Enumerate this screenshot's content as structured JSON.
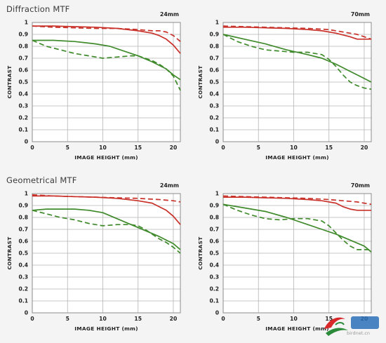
{
  "sections": [
    {
      "title": "Diffraction MTF"
    },
    {
      "title": "Geometrical MTF"
    }
  ],
  "colors": {
    "sagittal_red": "#c9322b",
    "meridional_red": "#c9322b",
    "green": "#3f8a2b",
    "grid": "#b5b5b5",
    "frame": "#8c8c8c",
    "background": "#ffffff"
  },
  "chart_data": [
    {
      "type": "line",
      "section": "Diffraction MTF",
      "focal_length": "24mm",
      "xlabel": "IMAGE HEIGHT (mm)",
      "ylabel": "CONTRAST",
      "xlim": [
        0,
        21
      ],
      "ylim": [
        0,
        1
      ],
      "xticks": [
        "0",
        "5",
        "10",
        "15",
        "20"
      ],
      "yticks": [
        "0",
        "0.1",
        "0.2",
        "0.3",
        "0.4",
        "0.5",
        "0.6",
        "0.7",
        "0.8",
        "0.9",
        "1"
      ],
      "grid": true,
      "series": [
        {
          "color": "red",
          "style": "solid",
          "x": [
            0,
            3,
            6,
            9,
            12,
            15,
            17,
            18,
            19,
            20,
            21
          ],
          "y": [
            0.97,
            0.97,
            0.965,
            0.96,
            0.95,
            0.93,
            0.91,
            0.89,
            0.86,
            0.81,
            0.74
          ]
        },
        {
          "color": "red",
          "style": "dashed",
          "x": [
            0,
            3,
            6,
            9,
            12,
            15,
            17,
            18,
            19,
            20,
            21
          ],
          "y": [
            0.97,
            0.96,
            0.955,
            0.95,
            0.95,
            0.94,
            0.93,
            0.93,
            0.92,
            0.89,
            0.84
          ]
        },
        {
          "color": "green",
          "style": "solid",
          "x": [
            0,
            3,
            6,
            9,
            11,
            13,
            15,
            17,
            19,
            20,
            21
          ],
          "y": [
            0.85,
            0.85,
            0.84,
            0.82,
            0.8,
            0.76,
            0.72,
            0.67,
            0.61,
            0.56,
            0.52
          ]
        },
        {
          "color": "green",
          "style": "dashed",
          "x": [
            0,
            2,
            4,
            6,
            8,
            10,
            12,
            14,
            15,
            16,
            17,
            18,
            19,
            20,
            21
          ],
          "y": [
            0.85,
            0.8,
            0.77,
            0.74,
            0.72,
            0.7,
            0.71,
            0.72,
            0.72,
            0.7,
            0.68,
            0.65,
            0.61,
            0.55,
            0.43
          ]
        }
      ]
    },
    {
      "type": "line",
      "section": "Diffraction MTF",
      "focal_length": "70mm",
      "xlabel": "IMAGE HEIGHT (mm)",
      "ylabel": "CONTRAST",
      "xlim": [
        0,
        21
      ],
      "ylim": [
        0,
        1
      ],
      "xticks": [
        "0",
        "5",
        "10",
        "15",
        "20"
      ],
      "yticks": [
        "0",
        "0.1",
        "0.2",
        "0.3",
        "0.4",
        "0.5",
        "0.6",
        "0.7",
        "0.8",
        "0.9",
        "1"
      ],
      "grid": true,
      "series": [
        {
          "color": "red",
          "style": "solid",
          "x": [
            0,
            3,
            6,
            9,
            12,
            14,
            16,
            18,
            19,
            20,
            21
          ],
          "y": [
            0.96,
            0.96,
            0.955,
            0.95,
            0.94,
            0.93,
            0.91,
            0.88,
            0.86,
            0.86,
            0.86
          ]
        },
        {
          "color": "red",
          "style": "dashed",
          "x": [
            0,
            3,
            6,
            9,
            12,
            15,
            17,
            19,
            20,
            21
          ],
          "y": [
            0.97,
            0.965,
            0.96,
            0.955,
            0.95,
            0.94,
            0.92,
            0.9,
            0.88,
            0.86
          ]
        },
        {
          "color": "green",
          "style": "solid",
          "x": [
            0,
            3,
            6,
            9,
            12,
            14,
            16,
            18,
            20,
            21
          ],
          "y": [
            0.9,
            0.86,
            0.82,
            0.77,
            0.73,
            0.7,
            0.65,
            0.59,
            0.53,
            0.5
          ]
        },
        {
          "color": "green",
          "style": "dashed",
          "x": [
            0,
            2,
            4,
            6,
            8,
            10,
            12,
            14,
            15,
            16,
            17,
            18,
            19,
            20,
            21
          ],
          "y": [
            0.9,
            0.84,
            0.8,
            0.77,
            0.76,
            0.75,
            0.75,
            0.73,
            0.69,
            0.63,
            0.56,
            0.5,
            0.47,
            0.45,
            0.44
          ]
        }
      ]
    },
    {
      "type": "line",
      "section": "Geometrical MTF",
      "focal_length": "24mm",
      "xlabel": "IMAGE HEIGHT (mm)",
      "ylabel": "CONTRAST",
      "xlim": [
        0,
        21
      ],
      "ylim": [
        0,
        1
      ],
      "xticks": [
        "0",
        "5",
        "10",
        "15",
        "20"
      ],
      "yticks": [
        "0",
        "0.1",
        "0.2",
        "0.3",
        "0.4",
        "0.5",
        "0.6",
        "0.7",
        "0.8",
        "0.9",
        "1"
      ],
      "grid": true,
      "series": [
        {
          "color": "red",
          "style": "solid",
          "x": [
            0,
            3,
            6,
            9,
            12,
            15,
            17,
            18,
            19,
            20,
            21
          ],
          "y": [
            0.98,
            0.98,
            0.975,
            0.97,
            0.96,
            0.94,
            0.92,
            0.89,
            0.86,
            0.81,
            0.74
          ]
        },
        {
          "color": "red",
          "style": "dashed",
          "x": [
            0,
            3,
            6,
            9,
            12,
            15,
            18,
            20,
            21
          ],
          "y": [
            0.99,
            0.98,
            0.975,
            0.97,
            0.965,
            0.96,
            0.95,
            0.94,
            0.93
          ]
        },
        {
          "color": "green",
          "style": "solid",
          "x": [
            0,
            2,
            4,
            6,
            8,
            10,
            12,
            14,
            16,
            18,
            20,
            21
          ],
          "y": [
            0.86,
            0.87,
            0.87,
            0.87,
            0.86,
            0.84,
            0.79,
            0.74,
            0.69,
            0.64,
            0.58,
            0.53
          ]
        },
        {
          "color": "green",
          "style": "dashed",
          "x": [
            0,
            2,
            4,
            6,
            8,
            10,
            12,
            14,
            15,
            16,
            17,
            18,
            19,
            20,
            21
          ],
          "y": [
            0.86,
            0.83,
            0.8,
            0.78,
            0.75,
            0.73,
            0.74,
            0.74,
            0.73,
            0.7,
            0.66,
            0.62,
            0.59,
            0.55,
            0.5
          ]
        }
      ]
    },
    {
      "type": "line",
      "section": "Geometrical MTF",
      "focal_length": "70mm",
      "xlabel": "IMAGE HEIGHT (mm)",
      "ylabel": "CONTRAST",
      "xlim": [
        0,
        21
      ],
      "ylim": [
        0,
        1
      ],
      "xticks": [
        "0",
        "5",
        "10",
        "15",
        "20"
      ],
      "yticks": [
        "0",
        "0.1",
        "0.2",
        "0.3",
        "0.4",
        "0.5",
        "0.6",
        "0.7",
        "0.8",
        "0.9",
        "1"
      ],
      "grid": true,
      "series": [
        {
          "color": "red",
          "style": "solid",
          "x": [
            0,
            3,
            6,
            9,
            12,
            14,
            16,
            17,
            18,
            19,
            20,
            21
          ],
          "y": [
            0.97,
            0.97,
            0.965,
            0.96,
            0.95,
            0.94,
            0.92,
            0.89,
            0.87,
            0.86,
            0.86,
            0.86
          ]
        },
        {
          "color": "red",
          "style": "dashed",
          "x": [
            0,
            3,
            6,
            9,
            12,
            15,
            17,
            19,
            20,
            21
          ],
          "y": [
            0.98,
            0.975,
            0.97,
            0.965,
            0.96,
            0.95,
            0.94,
            0.93,
            0.92,
            0.91
          ]
        },
        {
          "color": "green",
          "style": "solid",
          "x": [
            0,
            3,
            6,
            9,
            12,
            14,
            16,
            18,
            20,
            21
          ],
          "y": [
            0.91,
            0.88,
            0.85,
            0.8,
            0.74,
            0.7,
            0.66,
            0.61,
            0.56,
            0.51
          ]
        },
        {
          "color": "green",
          "style": "dashed",
          "x": [
            0,
            2,
            4,
            6,
            8,
            10,
            12,
            14,
            15,
            16,
            17,
            18,
            19,
            20,
            21
          ],
          "y": [
            0.91,
            0.86,
            0.82,
            0.79,
            0.78,
            0.79,
            0.79,
            0.77,
            0.73,
            0.67,
            0.61,
            0.56,
            0.53,
            0.53,
            0.53
          ]
        }
      ]
    }
  ],
  "watermark": {
    "text": "birdnet.cn"
  }
}
